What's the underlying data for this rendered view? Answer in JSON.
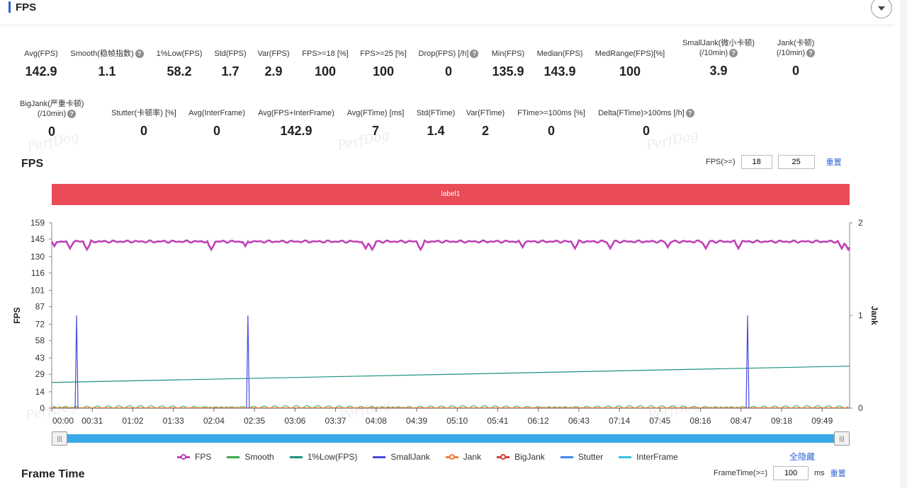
{
  "header": {
    "title": "FPS"
  },
  "metrics_row1": [
    {
      "label": "Avg(FPS)",
      "value": "142.9",
      "help": false
    },
    {
      "label": "Smooth(稳帧指数)",
      "value": "1.1",
      "help": true
    },
    {
      "label": "1%Low(FPS)",
      "value": "58.2",
      "help": false
    },
    {
      "label": "Std(FPS)",
      "value": "1.7",
      "help": false
    },
    {
      "label": "Var(FPS)",
      "value": "2.9",
      "help": false
    },
    {
      "label": "FPS>=18 [%]",
      "value": "100",
      "help": false
    },
    {
      "label": "FPS>=25 [%]",
      "value": "100",
      "help": false
    },
    {
      "label": "Drop(FPS) [/h]",
      "value": "0",
      "help": true
    },
    {
      "label": "Min(FPS)",
      "value": "135.9",
      "help": false
    },
    {
      "label": "Median(FPS)",
      "value": "143.9",
      "help": false
    },
    {
      "label": "MedRange(FPS)[%]",
      "value": "100",
      "help": false
    },
    {
      "label": "SmallJank(微小卡顿)",
      "label2": "(/10min)",
      "value": "3.9",
      "help": true
    },
    {
      "label": "Jank(卡顿)",
      "label2": "(/10min)",
      "value": "0",
      "help": true
    }
  ],
  "metrics_row2": [
    {
      "label": "BigJank(严重卡顿)",
      "label2": "(/10min)",
      "value": "0",
      "help": true
    },
    {
      "label": "Stutter(卡顿率) [%]",
      "value": "0",
      "help": false
    },
    {
      "label": "Avg(InterFrame)",
      "value": "0",
      "help": false
    },
    {
      "label": "Avg(FPS+InterFrame)",
      "value": "142.9",
      "help": false
    },
    {
      "label": "Avg(FTime) [ms]",
      "value": "7",
      "help": false
    },
    {
      "label": "Std(FTime)",
      "value": "1.4",
      "help": false
    },
    {
      "label": "Var(FTime)",
      "value": "2",
      "help": false
    },
    {
      "label": "FTime>=100ms [%]",
      "value": "0",
      "help": false
    },
    {
      "label": "Delta(FTime)>100ms [/h]",
      "value": "0",
      "help": true
    }
  ],
  "watermark": "PerfDog",
  "fps_section": {
    "title": "FPS",
    "threshold_label": "FPS(>=)",
    "threshold_1": "18",
    "threshold_2": "25",
    "reset_label": "重置",
    "label_band": "label1"
  },
  "chart_data": {
    "type": "line",
    "xlabel": "",
    "ylabel": "FPS",
    "y2label": "Jank",
    "x_ticks": [
      "00:00",
      "00:31",
      "01:02",
      "01:33",
      "02:04",
      "02:35",
      "03:06",
      "03:37",
      "04:08",
      "04:39",
      "05:10",
      "05:41",
      "06:12",
      "06:43",
      "07:14",
      "07:45",
      "08:16",
      "08:47",
      "09:18",
      "09:49"
    ],
    "y_ticks": [
      0,
      14,
      29,
      43,
      58,
      72,
      87,
      101,
      116,
      130,
      145,
      159
    ],
    "ylim": [
      0,
      159
    ],
    "y2_ticks": [
      0,
      1,
      2
    ],
    "y2lim": [
      0,
      2
    ],
    "xlim_seconds": [
      0,
      610
    ],
    "series": [
      {
        "name": "FPS",
        "color": "#c040b8",
        "axis": "left",
        "avg": 142.9,
        "dips": [
          {
            "t": 2,
            "v": 139
          },
          {
            "t": 14,
            "v": 137
          },
          {
            "t": 27,
            "v": 136
          },
          {
            "t": 122,
            "v": 136
          },
          {
            "t": 148,
            "v": 139
          },
          {
            "t": 240,
            "v": 137
          },
          {
            "t": 245,
            "v": 136
          },
          {
            "t": 282,
            "v": 136
          },
          {
            "t": 360,
            "v": 138
          },
          {
            "t": 400,
            "v": 137
          },
          {
            "t": 427,
            "v": 137
          },
          {
            "t": 471,
            "v": 138
          },
          {
            "t": 500,
            "v": 137
          },
          {
            "t": 525,
            "v": 137
          },
          {
            "t": 604,
            "v": 137
          },
          {
            "t": 609,
            "v": 136
          }
        ]
      },
      {
        "name": "Smooth",
        "color": "#3aa64a",
        "axis": "left"
      },
      {
        "name": "1%Low(FPS)",
        "color": "#1b9180",
        "axis": "left",
        "start": 22,
        "end": 36
      },
      {
        "name": "SmallJank",
        "color": "#4a4adf",
        "axis": "right",
        "spikes_t": [
          19,
          150,
          532
        ],
        "spike_value": 1
      },
      {
        "name": "Jank",
        "color": "#f47b3a",
        "axis": "right"
      },
      {
        "name": "BigJank",
        "color": "#d63a3a",
        "axis": "right"
      },
      {
        "name": "Stutter",
        "color": "#3d88ea",
        "axis": "right"
      },
      {
        "name": "InterFrame",
        "color": "#35c3d8",
        "axis": "left"
      }
    ]
  },
  "legend": {
    "hide_all": "全隐藏"
  },
  "frame_time": {
    "title": "Frame Time",
    "threshold_label": "FrameTime(>=)",
    "threshold_value": "100",
    "unit": "ms",
    "reset_label": "重置"
  }
}
